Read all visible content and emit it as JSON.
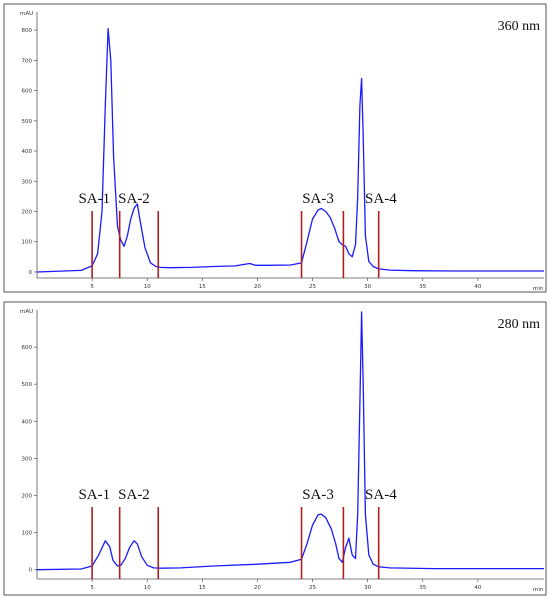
{
  "chart_data": [
    {
      "type": "line",
      "title": "",
      "wavelength_label": "360 nm",
      "ylabel": "mAU",
      "xlabel": "min",
      "xlim": [
        0,
        46
      ],
      "ylim": [
        -20,
        860
      ],
      "x_ticks": [
        5,
        10,
        15,
        20,
        25,
        30,
        35,
        40
      ],
      "x_tick_labels": [
        "5",
        "10",
        "15",
        "20",
        "25",
        "30",
        "35",
        "40"
      ],
      "y_ticks": [
        0,
        100,
        200,
        300,
        400,
        500,
        600,
        700,
        800
      ],
      "y_tick_labels": [
        "0",
        "100",
        "200",
        "300",
        "400",
        "500",
        "600",
        "700",
        "800"
      ],
      "line_color": "#1a1aff",
      "marker_color": "#b01e1e",
      "fraction_boundaries": [
        5,
        7.5,
        11,
        24,
        27.8,
        31
      ],
      "fraction_labels": [
        {
          "label": "SA-1",
          "x": 5.2
        },
        {
          "label": "SA-2",
          "x": 8.8
        },
        {
          "label": "SA-3",
          "x": 25.5
        },
        {
          "label": "SA-4",
          "x": 31.2
        }
      ],
      "series": [
        {
          "x": [
            0,
            4,
            5,
            5.5,
            5.9,
            6.2,
            6.45,
            6.7,
            6.95,
            7.3,
            7.6,
            7.9,
            8.2,
            8.5,
            8.8,
            9.1,
            9.4,
            9.8,
            10.3,
            10.8,
            11.2,
            12,
            14,
            16,
            18,
            18.8,
            19.3,
            19.8,
            21,
            23,
            24,
            24.5,
            25,
            25.5,
            25.8,
            26.2,
            26.6,
            27,
            27.4,
            27.7,
            28,
            28.3,
            28.6,
            28.9,
            29.1,
            29.3,
            29.45,
            29.6,
            29.8,
            30.1,
            30.5,
            31,
            32,
            34,
            38,
            42,
            46
          ],
          "y": [
            0,
            5,
            20,
            60,
            200,
            550,
            805,
            700,
            380,
            150,
            105,
            85,
            120,
            175,
            210,
            225,
            160,
            80,
            30,
            18,
            15,
            14,
            15,
            18,
            20,
            25,
            28,
            22,
            22,
            23,
            30,
            100,
            175,
            205,
            210,
            200,
            180,
            145,
            100,
            90,
            85,
            60,
            50,
            90,
            250,
            550,
            640,
            450,
            120,
            35,
            18,
            10,
            6,
            4,
            3,
            3,
            3
          ]
        }
      ]
    },
    {
      "type": "line",
      "title": "",
      "wavelength_label": "280 nm",
      "ylabel": "mAU",
      "xlabel": "min",
      "xlim": [
        0,
        46
      ],
      "ylim": [
        -25,
        700
      ],
      "x_ticks": [
        5,
        10,
        15,
        20,
        25,
        30,
        35,
        40
      ],
      "x_tick_labels": [
        "5",
        "10",
        "15",
        "20",
        "25",
        "30",
        "35",
        "40"
      ],
      "y_ticks": [
        0,
        100,
        200,
        300,
        400,
        500,
        600
      ],
      "y_tick_labels": [
        "0",
        "100",
        "200",
        "300",
        "400",
        "500",
        "600"
      ],
      "line_color": "#1a1aff",
      "marker_color": "#b01e1e",
      "fraction_boundaries": [
        5,
        7.5,
        11,
        24,
        27.8,
        31
      ],
      "fraction_labels": [
        {
          "label": "SA-1",
          "x": 5.2
        },
        {
          "label": "SA-2",
          "x": 8.8
        },
        {
          "label": "SA-3",
          "x": 25.5
        },
        {
          "label": "SA-4",
          "x": 31.2
        }
      ],
      "series": [
        {
          "x": [
            0,
            4,
            5,
            5.6,
            6.2,
            6.6,
            6.9,
            7.3,
            7.6,
            8,
            8.4,
            8.8,
            9.1,
            9.5,
            10,
            10.6,
            11.2,
            13,
            16,
            20,
            23,
            24,
            24.5,
            25,
            25.5,
            25.8,
            26.2,
            26.7,
            27.1,
            27.4,
            27.7,
            28,
            28.3,
            28.6,
            28.9,
            29.1,
            29.3,
            29.45,
            29.6,
            29.8,
            30.1,
            30.5,
            31,
            32,
            36,
            40,
            46
          ],
          "y": [
            0,
            2,
            10,
            40,
            78,
            62,
            25,
            10,
            12,
            30,
            60,
            78,
            70,
            35,
            12,
            5,
            4,
            5,
            10,
            15,
            20,
            28,
            70,
            120,
            148,
            150,
            140,
            110,
            70,
            30,
            20,
            60,
            85,
            40,
            30,
            150,
            450,
            695,
            500,
            150,
            40,
            15,
            8,
            5,
            3,
            3,
            3
          ]
        }
      ]
    }
  ]
}
